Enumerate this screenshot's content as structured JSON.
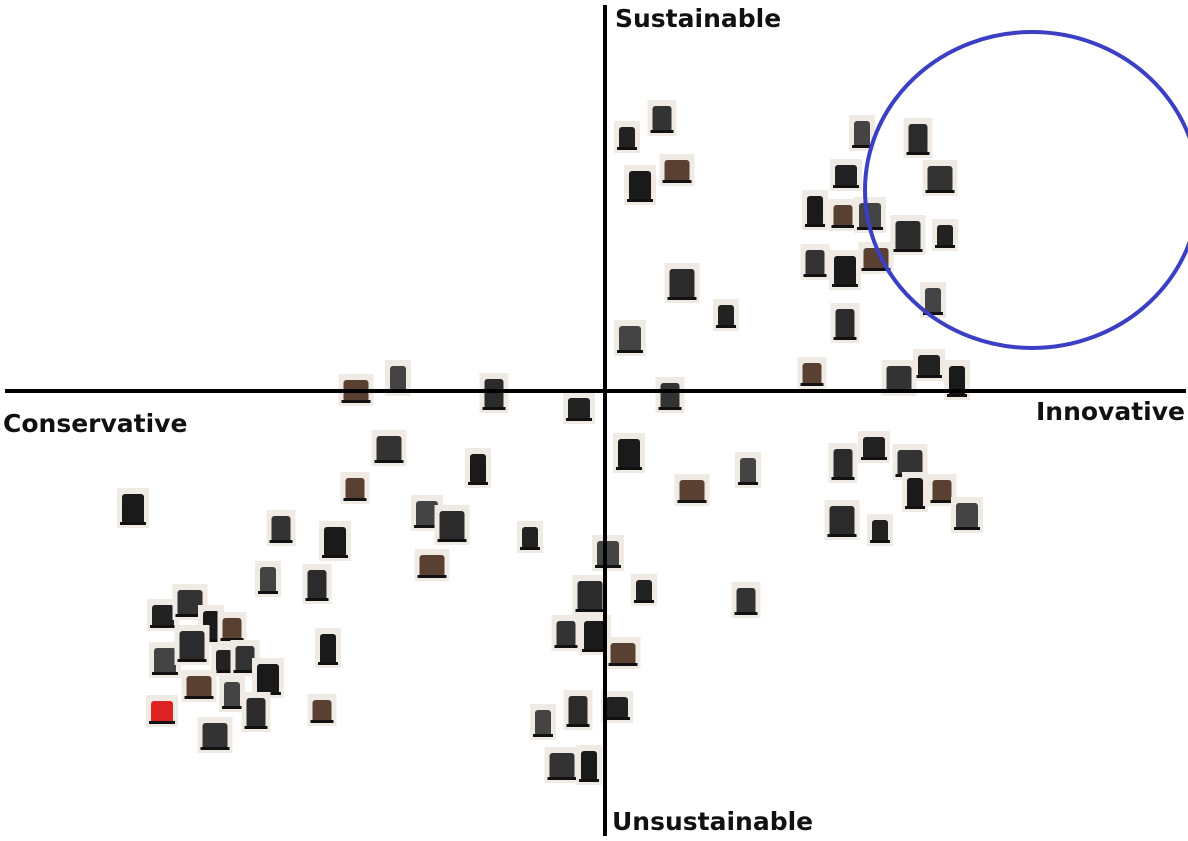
{
  "axes": {
    "top": "Sustainable",
    "bottom": "Unsustainable",
    "left": "Conservative",
    "right": "Innovative"
  }
}
